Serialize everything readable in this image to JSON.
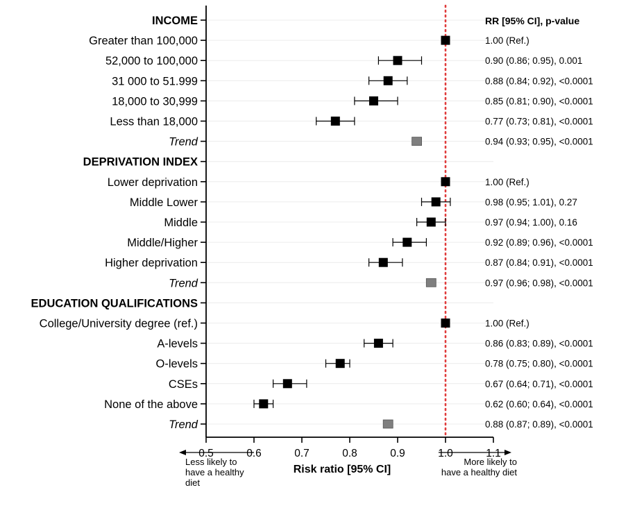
{
  "chart_data": {
    "type": "forest",
    "xlabel": "Risk ratio [95% CI]",
    "right_column_header": "RR [95% CI], p-value",
    "xlim": [
      0.5,
      1.1
    ],
    "xticks": [
      "0.5",
      "0.6",
      "0.7",
      "0.8",
      "0.9",
      "1.0",
      "1.1"
    ],
    "reference_line": {
      "x": 1.0,
      "style": "dotted",
      "color": "#e03c3c"
    },
    "direction_left": [
      "Less likely to",
      "have a healthy",
      "diet"
    ],
    "direction_right": [
      "More likely to",
      "have a healthy diet"
    ],
    "colors": {
      "estimate": "#000000",
      "trend": "#7f7f7f",
      "axis": "#000000"
    },
    "rows": [
      {
        "label": "INCOME",
        "kind": "header"
      },
      {
        "label": "Greater than 100,000",
        "kind": "estimate",
        "rr": 1.0,
        "text": "1.00 (Ref.)"
      },
      {
        "label": "52,000 to 100,000",
        "kind": "estimate",
        "rr": 0.9,
        "lo": 0.86,
        "hi": 0.95,
        "text": "0.90 (0.86; 0.95), 0.001"
      },
      {
        "label": "31 000 to 51.999",
        "kind": "estimate",
        "rr": 0.88,
        "lo": 0.84,
        "hi": 0.92,
        "text": "0.88 (0.84; 0.92), <0.0001"
      },
      {
        "label": "18,000 to 30,999",
        "kind": "estimate",
        "rr": 0.85,
        "lo": 0.81,
        "hi": 0.9,
        "text": "0.85 (0.81; 0.90), <0.0001"
      },
      {
        "label": "Less than 18,000",
        "kind": "estimate",
        "rr": 0.77,
        "lo": 0.73,
        "hi": 0.81,
        "text": "0.77 (0.73; 0.81), <0.0001"
      },
      {
        "label": "Trend",
        "kind": "trend",
        "rr": 0.94,
        "lo": 0.93,
        "hi": 0.95,
        "text": "0.94 (0.93; 0.95), <0.0001"
      },
      {
        "label": "DEPRIVATION INDEX",
        "kind": "header"
      },
      {
        "label": "Lower deprivation",
        "kind": "estimate",
        "rr": 1.0,
        "text": "1.00 (Ref.)"
      },
      {
        "label": "Middle Lower",
        "kind": "estimate",
        "rr": 0.98,
        "lo": 0.95,
        "hi": 1.01,
        "text": "0.98 (0.95; 1.01), 0.27"
      },
      {
        "label": "Middle",
        "kind": "estimate",
        "rr": 0.97,
        "lo": 0.94,
        "hi": 1.0,
        "text": "0.97 (0.94; 1.00), 0.16"
      },
      {
        "label": "Middle/Higher",
        "kind": "estimate",
        "rr": 0.92,
        "lo": 0.89,
        "hi": 0.96,
        "text": "0.92 (0.89; 0.96), <0.0001"
      },
      {
        "label": "Higher deprivation",
        "kind": "estimate",
        "rr": 0.87,
        "lo": 0.84,
        "hi": 0.91,
        "text": "0.87 (0.84; 0.91), <0.0001"
      },
      {
        "label": "Trend",
        "kind": "trend",
        "rr": 0.97,
        "lo": 0.96,
        "hi": 0.98,
        "text": "0.97 (0.96; 0.98), <0.0001"
      },
      {
        "label": "EDUCATION QUALIFICATIONS",
        "kind": "header"
      },
      {
        "label": "College/University degree (ref.)",
        "kind": "estimate",
        "rr": 1.0,
        "text": "1.00 (Ref.)"
      },
      {
        "label": "A-levels",
        "kind": "estimate",
        "rr": 0.86,
        "lo": 0.83,
        "hi": 0.89,
        "text": "0.86 (0.83; 0.89), <0.0001"
      },
      {
        "label": "O-levels",
        "kind": "estimate",
        "rr": 0.78,
        "lo": 0.75,
        "hi": 0.8,
        "text": "0.78 (0.75; 0.80), <0.0001"
      },
      {
        "label": "CSEs",
        "kind": "estimate",
        "rr": 0.67,
        "lo": 0.64,
        "hi": 0.71,
        "text": "0.67 (0.64; 0.71), <0.0001"
      },
      {
        "label": "None of the above",
        "kind": "estimate",
        "rr": 0.62,
        "lo": 0.6,
        "hi": 0.64,
        "text": "0.62 (0.60; 0.64), <0.0001"
      },
      {
        "label": "Trend",
        "kind": "trend",
        "rr": 0.88,
        "lo": 0.87,
        "hi": 0.89,
        "text": "0.88 (0.87; 0.89), <0.0001"
      }
    ]
  }
}
